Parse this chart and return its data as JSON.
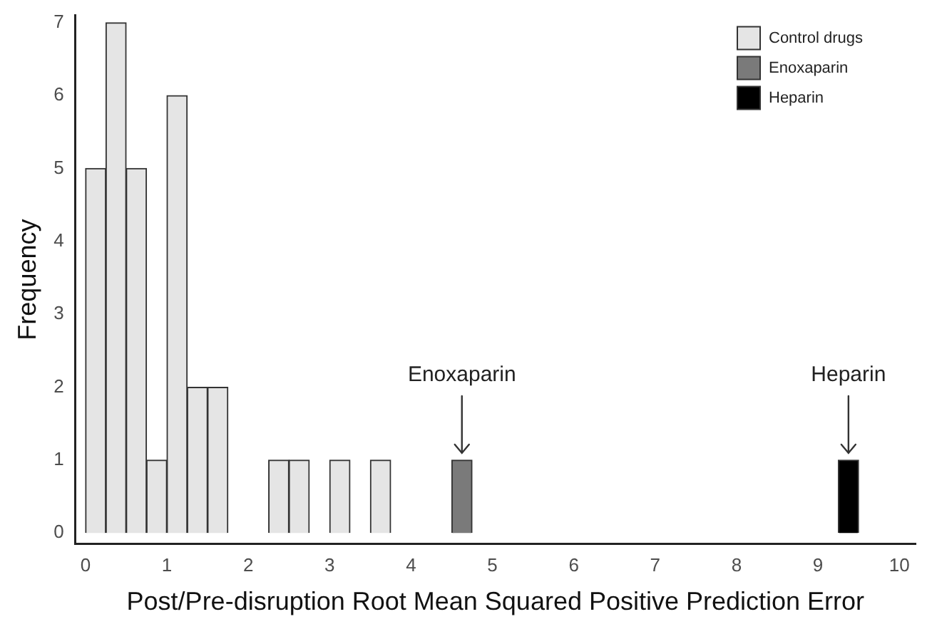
{
  "chart_data": {
    "type": "histogram",
    "xlabel": "Post/Pre-disruption Root Mean Squared Positive Prediction Error",
    "ylabel": "Frequency",
    "bins": [
      0,
      0.25,
      0.5,
      0.75,
      1,
      1.25,
      1.5,
      1.75,
      2,
      2.25,
      2.5,
      2.75,
      3,
      3.25,
      3.5,
      3.75,
      4,
      4.25,
      4.5,
      4.75,
      5,
      5.25,
      5.5,
      5.75,
      6,
      6.25,
      6.5,
      6.75,
      7,
      7.25,
      7.5,
      7.75,
      8,
      8.25,
      8.5,
      8.75,
      9,
      9.25,
      9.5,
      9.75,
      10
    ],
    "series": [
      {
        "name": "Control drugs",
        "color": "#e5e5e5",
        "values": [
          5,
          7,
          5,
          1,
          6,
          2,
          2,
          0,
          0,
          1,
          1,
          0,
          1,
          0,
          1,
          0,
          0,
          0,
          0,
          0,
          0,
          0,
          0,
          0,
          0,
          0,
          0,
          0,
          0,
          0,
          0,
          0,
          0,
          0,
          0,
          0,
          0,
          0,
          0,
          0
        ]
      },
      {
        "name": "Enoxaparin",
        "color": "#7a7a7a",
        "values": [
          0,
          0,
          0,
          0,
          0,
          0,
          0,
          0,
          0,
          0,
          0,
          0,
          0,
          0,
          0,
          0,
          0,
          0,
          1,
          0,
          0,
          0,
          0,
          0,
          0,
          0,
          0,
          0,
          0,
          0,
          0,
          0,
          0,
          0,
          0,
          0,
          0,
          0,
          0,
          0
        ]
      },
      {
        "name": "Heparin",
        "color": "#000000",
        "values": [
          0,
          0,
          0,
          0,
          0,
          0,
          0,
          0,
          0,
          0,
          0,
          0,
          0,
          0,
          0,
          0,
          0,
          0,
          0,
          0,
          0,
          0,
          0,
          0,
          0,
          0,
          0,
          0,
          0,
          0,
          0,
          0,
          0,
          0,
          0,
          0,
          0,
          1,
          0,
          0
        ]
      }
    ],
    "xlim": [
      -0.125,
      10.2
    ],
    "xticks": [
      0,
      1,
      2,
      3,
      4,
      5,
      6,
      7,
      8,
      9,
      10
    ],
    "ylim": [
      -0.15,
      7.1
    ],
    "yticks": [
      0,
      1,
      2,
      3,
      4,
      5,
      6,
      7
    ],
    "grid": false,
    "legend": "top right",
    "annotations": [
      {
        "text": "Enoxaparin",
        "x": 4.625,
        "y": 1
      },
      {
        "text": "Heparin",
        "x": 9.375,
        "y": 1
      }
    ]
  }
}
